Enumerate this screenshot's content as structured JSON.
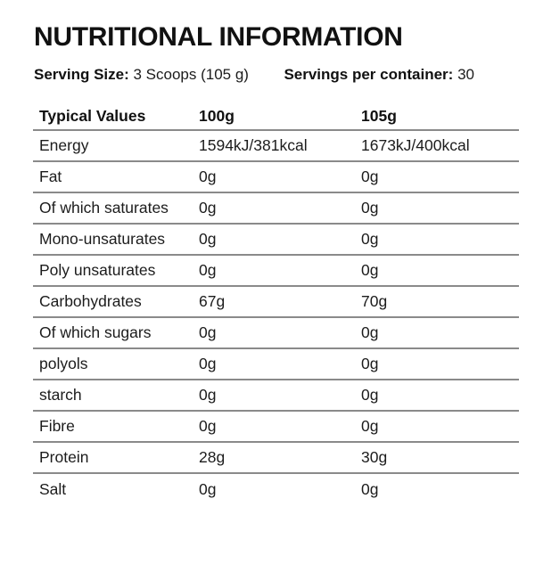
{
  "title": "NUTRITIONAL INFORMATION",
  "serving": {
    "size_label": "Serving Size:",
    "size_value": "3 Scoops (105 g)",
    "per_container_label": "Servings per container:",
    "per_container_value": "30"
  },
  "table": {
    "columns": [
      "Typical Values",
      "100g",
      "105g"
    ],
    "rows": [
      {
        "label": "Energy",
        "per_100g": "1594kJ/381kcal",
        "per_105g": "1673kJ/400kcal"
      },
      {
        "label": "Fat",
        "per_100g": "0g",
        "per_105g": "0g"
      },
      {
        "label": "Of which saturates",
        "per_100g": "0g",
        "per_105g": "0g"
      },
      {
        "label": "Mono-unsaturates",
        "per_100g": "0g",
        "per_105g": "0g"
      },
      {
        "label": "Poly unsaturates",
        "per_100g": "0g",
        "per_105g": "0g"
      },
      {
        "label": "Carbohydrates",
        "per_100g": "67g",
        "per_105g": "70g"
      },
      {
        "label": "Of which sugars",
        "per_100g": "0g",
        "per_105g": "0g"
      },
      {
        "label": "polyols",
        "per_100g": "0g",
        "per_105g": "0g"
      },
      {
        "label": "starch",
        "per_100g": "0g",
        "per_105g": "0g"
      },
      {
        "label": "Fibre",
        "per_100g": "0g",
        "per_105g": "0g"
      },
      {
        "label": "Protein",
        "per_100g": "28g",
        "per_105g": "30g"
      },
      {
        "label": "Salt",
        "per_100g": "0g",
        "per_105g": "0g"
      }
    ]
  },
  "colors": {
    "text": "#1c1c1c",
    "heading": "#111111",
    "rule": "#8a8a8a",
    "background": "#ffffff"
  }
}
